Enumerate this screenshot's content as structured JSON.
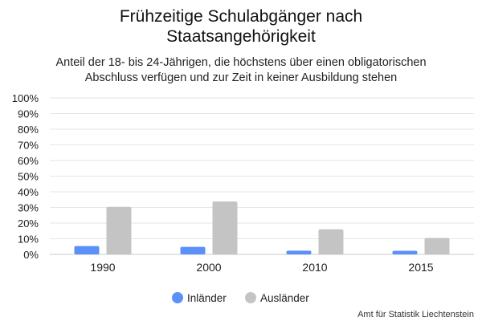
{
  "chart_data": {
    "type": "bar",
    "title": [
      "Frühzeitige Schulabgänger nach",
      "Staatsangehörigkeit"
    ],
    "subtitle": [
      "Anteil der 18- bis 24-Jährigen, die höchstens über einen obligatorischen",
      "Abschluss verfügen und zur Zeit in keiner Ausbildung stehen"
    ],
    "categories": [
      "1990",
      "2000",
      "2010",
      "2015"
    ],
    "series": [
      {
        "name": "Inländer",
        "color": "#5b8ff9",
        "values": [
          5.3,
          4.8,
          2.4,
          2.3
        ]
      },
      {
        "name": "Ausländer",
        "color": "#c4c4c4",
        "values": [
          30.4,
          33.8,
          16.0,
          10.5
        ]
      }
    ],
    "ylim": [
      0,
      100
    ],
    "yticks": [
      "0%",
      "10%",
      "20%",
      "30%",
      "40%",
      "50%",
      "60%",
      "70%",
      "80%",
      "90%",
      "100%"
    ],
    "grid": true,
    "legend_position": "bottom",
    "source": "Amt für Statistik Liechtenstein"
  }
}
